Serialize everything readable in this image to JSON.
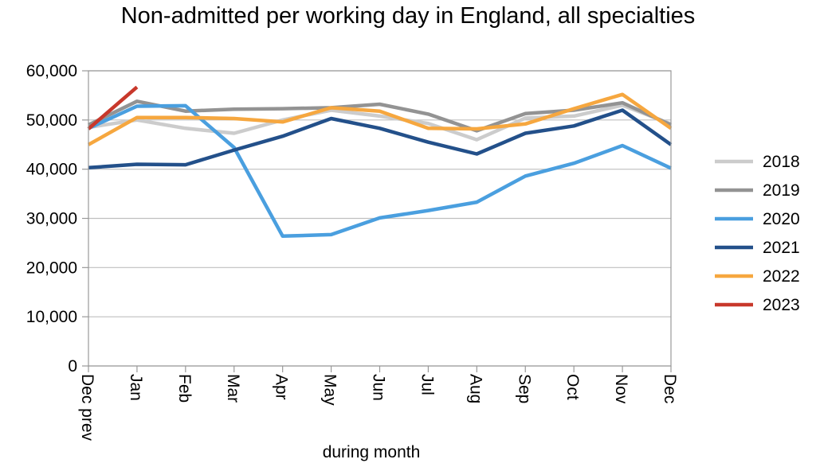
{
  "chart_data": {
    "type": "line",
    "title": "Non-admitted per working day in England, all specialties",
    "xlabel": "during  month",
    "ylabel": "",
    "ylim": [
      0,
      60000
    ],
    "yticks": [
      "0",
      "10,000",
      "20,000",
      "30,000",
      "40,000",
      "50,000",
      "60,000"
    ],
    "categories": [
      "Dec prev",
      "Jan",
      "Feb",
      "Mar",
      "Apr",
      "May",
      "Jun",
      "Jul",
      "Aug",
      "Sep",
      "Oct",
      "Nov",
      "Dec"
    ],
    "grid": true,
    "legend_position": "right",
    "series": [
      {
        "name": "2018",
        "color": "#cccccc",
        "values": [
          48500,
          50000,
          48300,
          47300,
          50000,
          52000,
          50800,
          49300,
          46000,
          50400,
          50800,
          53000,
          49200
        ]
      },
      {
        "name": "2019",
        "color": "#939393",
        "values": [
          49000,
          53800,
          51800,
          52200,
          52300,
          52500,
          53200,
          51200,
          47800,
          51300,
          52000,
          53500,
          49000
        ]
      },
      {
        "name": "2020",
        "color": "#4a9fdf",
        "values": [
          48300,
          52800,
          52900,
          44400,
          26400,
          26700,
          30100,
          31600,
          33300,
          38600,
          41200,
          44800,
          40200
        ]
      },
      {
        "name": "2021",
        "color": "#23508a",
        "values": [
          40300,
          41000,
          40900,
          43900,
          46700,
          50300,
          48300,
          45500,
          43100,
          47300,
          48800,
          52000,
          45000
        ]
      },
      {
        "name": "2022",
        "color": "#f6a73f",
        "values": [
          45000,
          50500,
          50500,
          50300,
          49600,
          52500,
          51800,
          48300,
          48200,
          49200,
          52300,
          55200,
          48300
        ]
      },
      {
        "name": "2023",
        "color": "#c8382b",
        "values": [
          48200,
          56700,
          null,
          null,
          null,
          null,
          null,
          null,
          null,
          null,
          null,
          null,
          null
        ]
      }
    ]
  }
}
